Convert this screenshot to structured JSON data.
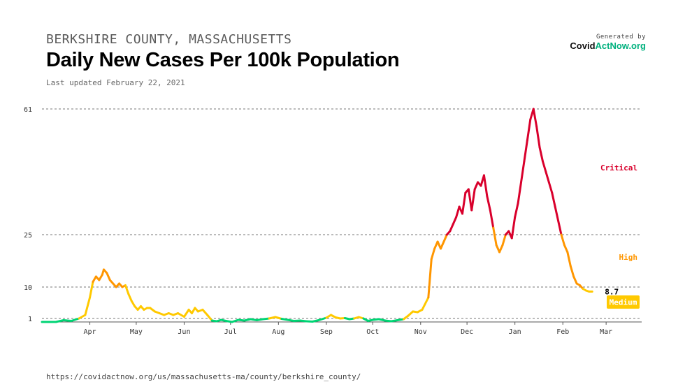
{
  "header": {
    "subtitle": "BERKSHIRE COUNTY, MASSACHUSETTS",
    "title": "Daily New Cases Per 100k Population",
    "updated": "Last updated February 22, 2021"
  },
  "brand": {
    "generated_by": "Generated by",
    "logo_part1": "Covid",
    "logo_part2": "ActNow",
    "logo_part3": ".org"
  },
  "footer": {
    "url": "https://covidactnow.org/us/massachusetts-ma/county/berkshire_county/"
  },
  "colors": {
    "low": "#00d474",
    "medium": "#ffc900",
    "high": "#ff9600",
    "critical": "#d9002c",
    "brand_green": "#00b17e"
  },
  "chart_data": {
    "type": "line",
    "title": "Daily New Cases Per 100k Population",
    "xlabel": "",
    "ylabel": "",
    "x_tick_labels": [
      "Apr",
      "May",
      "Jun",
      "Jul",
      "Aug",
      "Sep",
      "Oct",
      "Nov",
      "Dec",
      "Jan",
      "Feb",
      "Mar"
    ],
    "x_ticks": [
      "2020-04-01",
      "2020-05-01",
      "2020-06-01",
      "2020-07-01",
      "2020-08-01",
      "2020-09-01",
      "2020-10-01",
      "2020-11-01",
      "2020-12-01",
      "2021-01-01",
      "2021-02-01",
      "2021-03-01"
    ],
    "xlim": [
      "2020-03-01",
      "2021-03-24"
    ],
    "y_ticks": [
      1,
      10,
      25,
      61
    ],
    "ylim": [
      0,
      61
    ],
    "grid": true,
    "zones": [
      {
        "label": "Critical",
        "min": 25,
        "color": "#d9002c"
      },
      {
        "label": "High",
        "min": 10,
        "color": "#ff9600"
      },
      {
        "label": "Medium",
        "min": 1,
        "color": "#ffc900"
      }
    ],
    "last_value_label": "8.7",
    "last_zone_label": "Medium",
    "series": [
      {
        "points": [
          [
            "2020-03-01",
            0.0
          ],
          [
            "2020-03-10",
            0.0
          ],
          [
            "2020-03-15",
            0.5
          ],
          [
            "2020-03-20",
            0.3
          ],
          [
            "2020-03-25",
            1.0
          ],
          [
            "2020-03-29",
            2.0
          ],
          [
            "2020-04-01",
            7.0
          ],
          [
            "2020-04-03",
            11.5
          ],
          [
            "2020-04-05",
            13.0
          ],
          [
            "2020-04-07",
            12.0
          ],
          [
            "2020-04-09",
            13.5
          ],
          [
            "2020-04-10",
            15.0
          ],
          [
            "2020-04-12",
            14.0
          ],
          [
            "2020-04-14",
            12.0
          ],
          [
            "2020-04-16",
            11.0
          ],
          [
            "2020-04-18",
            10.0
          ],
          [
            "2020-04-20",
            11.0
          ],
          [
            "2020-04-22",
            10.0
          ],
          [
            "2020-04-24",
            10.5
          ],
          [
            "2020-04-26",
            8.0
          ],
          [
            "2020-04-28",
            6.0
          ],
          [
            "2020-04-30",
            4.5
          ],
          [
            "2020-05-02",
            3.5
          ],
          [
            "2020-05-04",
            4.5
          ],
          [
            "2020-05-06",
            3.5
          ],
          [
            "2020-05-08",
            4.0
          ],
          [
            "2020-05-10",
            4.0
          ],
          [
            "2020-05-13",
            3.0
          ],
          [
            "2020-05-16",
            2.5
          ],
          [
            "2020-05-19",
            2.0
          ],
          [
            "2020-05-22",
            2.5
          ],
          [
            "2020-05-25",
            2.0
          ],
          [
            "2020-05-28",
            2.5
          ],
          [
            "2020-06-01",
            1.5
          ],
          [
            "2020-06-04",
            3.5
          ],
          [
            "2020-06-06",
            2.5
          ],
          [
            "2020-06-08",
            4.0
          ],
          [
            "2020-06-10",
            3.0
          ],
          [
            "2020-06-13",
            3.5
          ],
          [
            "2020-06-16",
            2.0
          ],
          [
            "2020-06-19",
            0.4
          ],
          [
            "2020-06-22",
            0.2
          ],
          [
            "2020-06-25",
            0.6
          ],
          [
            "2020-06-28",
            0.3
          ],
          [
            "2020-07-02",
            0.0
          ],
          [
            "2020-07-06",
            0.6
          ],
          [
            "2020-07-10",
            0.4
          ],
          [
            "2020-07-14",
            0.8
          ],
          [
            "2020-07-18",
            0.5
          ],
          [
            "2020-07-22",
            0.8
          ],
          [
            "2020-07-26",
            1.0
          ],
          [
            "2020-07-30",
            1.4
          ],
          [
            "2020-08-03",
            0.9
          ],
          [
            "2020-08-07",
            0.6
          ],
          [
            "2020-08-11",
            0.3
          ],
          [
            "2020-08-15",
            0.4
          ],
          [
            "2020-08-19",
            0.2
          ],
          [
            "2020-08-23",
            0.1
          ],
          [
            "2020-08-27",
            0.5
          ],
          [
            "2020-09-01",
            1.2
          ],
          [
            "2020-09-04",
            2.0
          ],
          [
            "2020-09-07",
            1.3
          ],
          [
            "2020-09-10",
            1.0
          ],
          [
            "2020-09-13",
            1.1
          ],
          [
            "2020-09-16",
            0.8
          ],
          [
            "2020-09-19",
            1.0
          ],
          [
            "2020-09-22",
            1.4
          ],
          [
            "2020-09-25",
            1.0
          ],
          [
            "2020-09-28",
            0.3
          ],
          [
            "2020-10-01",
            0.6
          ],
          [
            "2020-10-05",
            0.8
          ],
          [
            "2020-10-09",
            0.4
          ],
          [
            "2020-10-13",
            0.2
          ],
          [
            "2020-10-17",
            0.5
          ],
          [
            "2020-10-21",
            0.8
          ],
          [
            "2020-10-24",
            1.8
          ],
          [
            "2020-10-27",
            3.0
          ],
          [
            "2020-10-30",
            2.8
          ],
          [
            "2020-11-02",
            3.5
          ],
          [
            "2020-11-06",
            7.0
          ],
          [
            "2020-11-08",
            18.0
          ],
          [
            "2020-11-10",
            21.0
          ],
          [
            "2020-11-12",
            23.0
          ],
          [
            "2020-11-14",
            21.0
          ],
          [
            "2020-11-16",
            23.0
          ],
          [
            "2020-11-18",
            25.0
          ],
          [
            "2020-11-20",
            26.0
          ],
          [
            "2020-11-22",
            28.0
          ],
          [
            "2020-11-24",
            30.0
          ],
          [
            "2020-11-26",
            33.0
          ],
          [
            "2020-11-28",
            31.0
          ],
          [
            "2020-11-30",
            37.0
          ],
          [
            "2020-12-02",
            38.0
          ],
          [
            "2020-12-04",
            32.0
          ],
          [
            "2020-12-06",
            38.0
          ],
          [
            "2020-12-08",
            40.0
          ],
          [
            "2020-12-10",
            39.0
          ],
          [
            "2020-12-12",
            42.0
          ],
          [
            "2020-12-14",
            36.0
          ],
          [
            "2020-12-16",
            32.0
          ],
          [
            "2020-12-18",
            27.0
          ],
          [
            "2020-12-20",
            22.0
          ],
          [
            "2020-12-22",
            20.0
          ],
          [
            "2020-12-24",
            22.0
          ],
          [
            "2020-12-26",
            25.0
          ],
          [
            "2020-12-28",
            26.0
          ],
          [
            "2020-12-30",
            24.0
          ],
          [
            "2021-01-01",
            30.0
          ],
          [
            "2021-01-03",
            34.0
          ],
          [
            "2021-01-05",
            40.0
          ],
          [
            "2021-01-07",
            46.0
          ],
          [
            "2021-01-09",
            52.0
          ],
          [
            "2021-01-11",
            58.0
          ],
          [
            "2021-01-13",
            61.0
          ],
          [
            "2021-01-15",
            56.0
          ],
          [
            "2021-01-17",
            50.0
          ],
          [
            "2021-01-19",
            46.0
          ],
          [
            "2021-01-21",
            43.0
          ],
          [
            "2021-01-23",
            40.0
          ],
          [
            "2021-01-25",
            37.0
          ],
          [
            "2021-01-27",
            33.0
          ],
          [
            "2021-01-29",
            29.0
          ],
          [
            "2021-01-31",
            25.0
          ],
          [
            "2021-02-02",
            22.0
          ],
          [
            "2021-02-04",
            20.0
          ],
          [
            "2021-02-06",
            16.0
          ],
          [
            "2021-02-08",
            13.0
          ],
          [
            "2021-02-10",
            11.0
          ],
          [
            "2021-02-12",
            10.5
          ],
          [
            "2021-02-14",
            9.5
          ],
          [
            "2021-02-16",
            9.0
          ],
          [
            "2021-02-18",
            8.7
          ],
          [
            "2021-02-20",
            8.7
          ]
        ]
      }
    ]
  }
}
